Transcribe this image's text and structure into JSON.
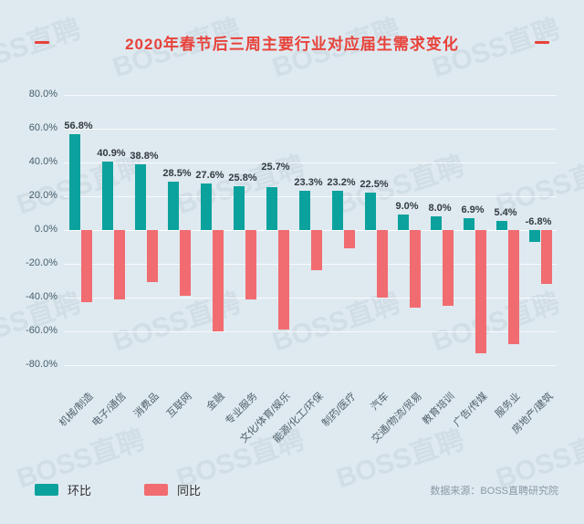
{
  "title": "2020年春节后三周主要行业对应届生需求变化",
  "watermark": "BOSS直聘",
  "source": "数据来源：BOSS直聘研究院",
  "legend": [
    {
      "label": "环比",
      "color": "#0ba29d"
    },
    {
      "label": "同比",
      "color": "#f16c70"
    }
  ],
  "chart_data": {
    "type": "bar",
    "title": "2020年春节后三周主要行业对应届生需求变化",
    "categories": [
      "机械/制造",
      "电子/通信",
      "消费品",
      "互联网",
      "金融",
      "专业服务",
      "文化/体育/娱乐",
      "能源/化工/环保",
      "制药/医疗",
      "汽车",
      "交通/物流/贸易",
      "教育培训",
      "广告/传媒",
      "服务业",
      "房地产/建筑"
    ],
    "series": [
      {
        "name": "环比",
        "color": "#0ba29d",
        "values": [
          56.8,
          40.9,
          38.8,
          28.5,
          27.6,
          25.8,
          25.7,
          23.3,
          23.2,
          22.5,
          9.0,
          8.0,
          6.9,
          5.4,
          -6.8
        ]
      },
      {
        "name": "同比",
        "color": "#f16c70",
        "values": [
          -43,
          -41,
          -31,
          -39,
          -60,
          -41,
          -59,
          -24,
          -11,
          -40,
          -46,
          -45,
          -73,
          -68,
          -32
        ]
      }
    ],
    "value_labels": [
      "56.8%",
      "40.9%",
      "38.8%",
      "28.5%",
      "27.6%",
      "25.8%",
      "25.7%",
      "23.3%",
      "23.2%",
      "22.5%",
      "9.0%",
      "8.0%",
      "6.9%",
      "5.4%",
      "-6.8%"
    ],
    "xlabel": "",
    "ylabel": "",
    "ylim": [
      -80,
      80
    ],
    "ytick_step": 20,
    "ytick_labels": [
      "80.0%",
      "60.0%",
      "40.0%",
      "20.0%",
      "0.0%",
      "-20.0%",
      "-40.0%",
      "-60.0%",
      "-80.0%"
    ],
    "grid": true,
    "legend_position": "bottom",
    "raised_labels": [
      6
    ]
  }
}
